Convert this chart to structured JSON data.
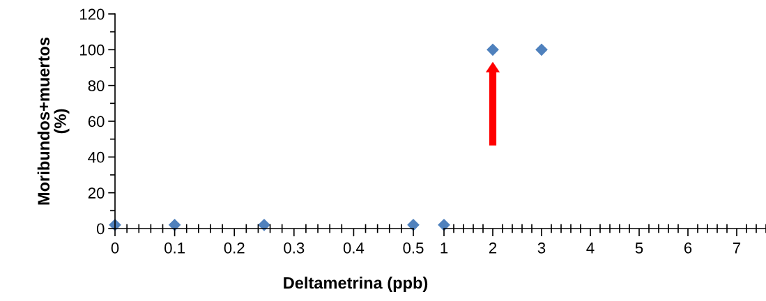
{
  "chart_data": [
    {
      "type": "scatter",
      "xlabel": "Deltametrina (ppb)",
      "ylabel": "Moribundos+muertos\n(%)",
      "x": [
        0,
        0.1,
        0.25,
        0.5
      ],
      "series": [
        {
          "color": "#4f81bd",
          "values": [
            2,
            2,
            2,
            2
          ]
        }
      ],
      "xlim": [
        0,
        0.5
      ],
      "xticks": [
        0,
        0.1,
        0.2,
        0.3,
        0.4,
        0.5
      ],
      "ylim": [
        0,
        120
      ],
      "yticks": [
        0,
        20,
        40,
        60,
        80,
        100,
        120
      ],
      "marker": "diamond",
      "grid": false
    },
    {
      "type": "scatter",
      "x": [
        1,
        2,
        3
      ],
      "series": [
        {
          "color": "#4f81bd",
          "values": [
            2,
            100,
            100
          ]
        }
      ],
      "xlim": [
        1,
        7.6
      ],
      "xticks": [
        1,
        2,
        3,
        4,
        5,
        6,
        7
      ],
      "ylim": [
        0,
        120
      ],
      "yticks": [
        0,
        20,
        40,
        60,
        80,
        100,
        120
      ],
      "tick_labels": "x",
      "marker": "diamond",
      "grid": false
    }
  ]
}
